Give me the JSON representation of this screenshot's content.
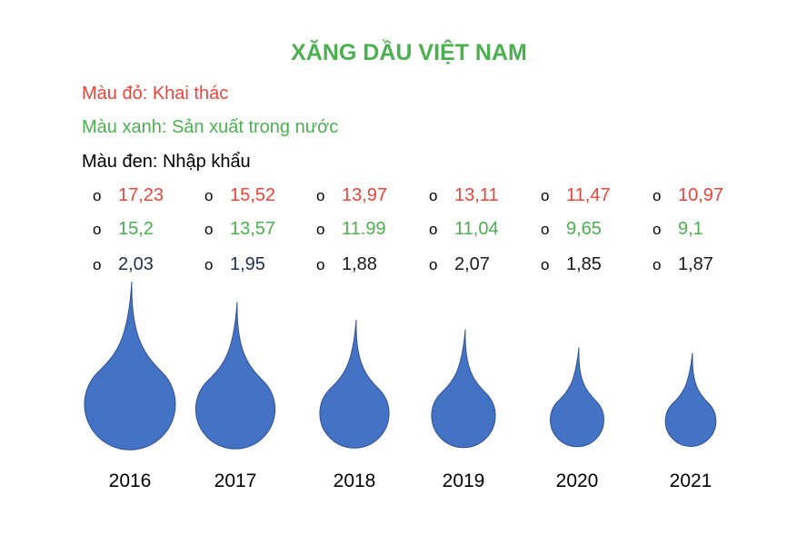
{
  "title": "XĂNG DẦU VIỆT NAM",
  "legend": {
    "red": "Màu đỏ: Khai thác",
    "green": "Màu xanh: Sản xuất trong nước",
    "black": "Màu đen: Nhập khẩu"
  },
  "colors": {
    "title": "#4caf50",
    "khai_thac": "#e8453c",
    "san_xuat": "#4caf50",
    "nhap_khau": "#000000",
    "drop_fill": "#4472c4",
    "drop_stroke": "#2f528f"
  },
  "chart_data": {
    "type": "pictograph",
    "categories": [
      "2016",
      "2017",
      "2018",
      "2019",
      "2020",
      "2021"
    ],
    "series": [
      {
        "name": "Khai thác",
        "color": "#e8453c",
        "labels": [
          "17,23",
          "15,52",
          "13,97",
          "13,11",
          "11,47",
          "10,97"
        ],
        "values": [
          17.23,
          15.52,
          13.97,
          13.11,
          11.47,
          10.97
        ]
      },
      {
        "name": "Sản xuất trong nước",
        "color": "#4caf50",
        "labels": [
          "15,2",
          "13,57",
          "11.99",
          "11,04",
          "9,65",
          "9,1"
        ],
        "values": [
          15.2,
          13.57,
          11.99,
          11.04,
          9.65,
          9.1
        ]
      },
      {
        "name": "Nhập khẩu",
        "color": "#000000",
        "labels": [
          "2,03",
          "1,95",
          "1,88",
          "2,07",
          "1,85",
          "1,87"
        ],
        "values": [
          2.03,
          1.95,
          1.88,
          2.07,
          1.85,
          1.87
        ]
      }
    ],
    "mark": "oil-drop-icon"
  }
}
